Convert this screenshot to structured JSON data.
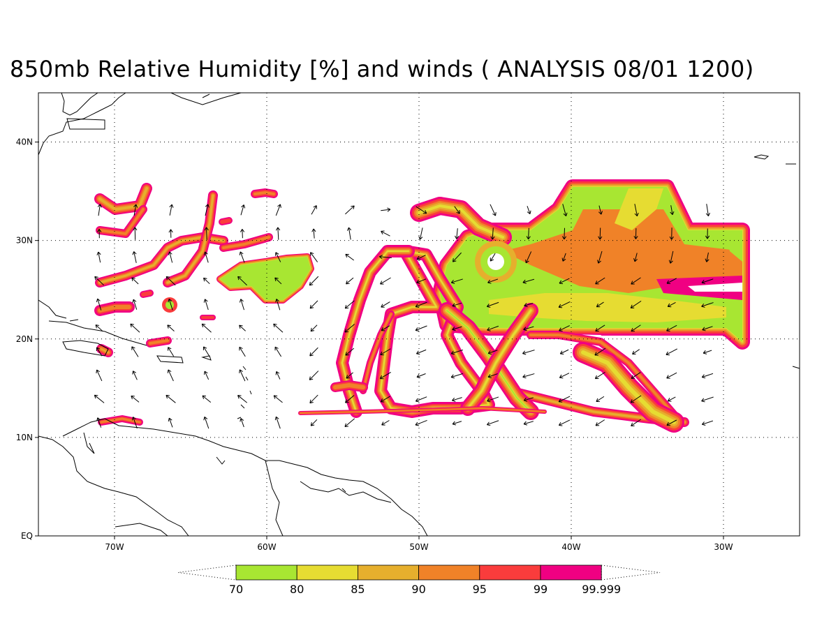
{
  "title": "850mb Relative Humidity [%] and winds ( ANALYSIS 08/01 1200)",
  "map": {
    "lon_range": [
      -75,
      -25
    ],
    "lat_range": [
      0,
      45
    ],
    "lat_ticks": [
      {
        "value": 40,
        "label": "40N"
      },
      {
        "value": 30,
        "label": "30N"
      },
      {
        "value": 20,
        "label": "20N"
      },
      {
        "value": 10,
        "label": "10N"
      },
      {
        "value": 0,
        "label": "EQ"
      }
    ],
    "lon_ticks": [
      {
        "value": -70,
        "label": "70W"
      },
      {
        "value": -60,
        "label": "60W"
      },
      {
        "value": -50,
        "label": "50W"
      },
      {
        "value": -40,
        "label": "40W"
      },
      {
        "value": -30,
        "label": "30W"
      }
    ],
    "grid": "dotted"
  },
  "colorbar": {
    "colors": [
      "#a8e632",
      "#e6dc32",
      "#e6af2d",
      "#f08228",
      "#fa3c3c",
      "#f00082"
    ],
    "labels": [
      "70",
      "80",
      "85",
      "90",
      "95",
      "99",
      "99.999"
    ]
  }
}
